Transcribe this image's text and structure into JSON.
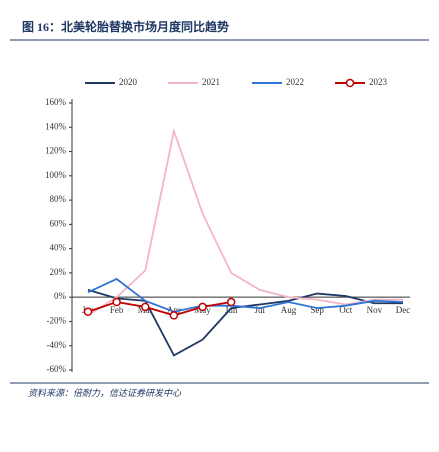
{
  "chart_data": {
    "type": "line",
    "title": "图 16：北美轮胎替换市场月度同比趋势",
    "source": "资料来源：倍耐力，信达证券研发中心",
    "categories": [
      "Jan",
      "Feb",
      "Mar",
      "Apr",
      "May",
      "Jun",
      "Jul",
      "Aug",
      "Sep",
      "Oct",
      "Nov",
      "Dec"
    ],
    "series": [
      {
        "name": "2020",
        "color": "#1f3864",
        "values": [
          6,
          -1,
          -3,
          -48,
          -35,
          -9,
          -6,
          -3,
          3,
          1,
          -5,
          -5
        ]
      },
      {
        "name": "2021",
        "color": "#f4b6c2",
        "values": [
          -15,
          0,
          22,
          137,
          69,
          20,
          6,
          0,
          -2,
          -6,
          -2,
          -2
        ]
      },
      {
        "name": "2022",
        "color": "#2e75d6",
        "values": [
          4,
          15,
          -3,
          -12,
          -7,
          -7,
          -9,
          -4,
          -9,
          -7,
          -3,
          -4
        ]
      },
      {
        "name": "2023",
        "color": "#c00000",
        "markers": true,
        "values": [
          -12,
          -4,
          -8,
          -15,
          -8,
          -4,
          null,
          null,
          null,
          null,
          null,
          null
        ]
      }
    ],
    "ylim": [
      -60,
      160
    ],
    "yticks": [
      {
        "value": 160,
        "label": "160%"
      },
      {
        "value": 140,
        "label": "140%"
      },
      {
        "value": 120,
        "label": "120%"
      },
      {
        "value": 100,
        "label": "100%"
      },
      {
        "value": 80,
        "label": "80%"
      },
      {
        "value": 60,
        "label": "60%"
      },
      {
        "value": 40,
        "label": "40%"
      },
      {
        "value": 20,
        "label": "20%"
      },
      {
        "value": 0,
        "label": "0%"
      },
      {
        "value": -20,
        "label": "-20%"
      },
      {
        "value": -40,
        "label": "-40%"
      },
      {
        "value": -60,
        "label": "-60%"
      }
    ]
  }
}
